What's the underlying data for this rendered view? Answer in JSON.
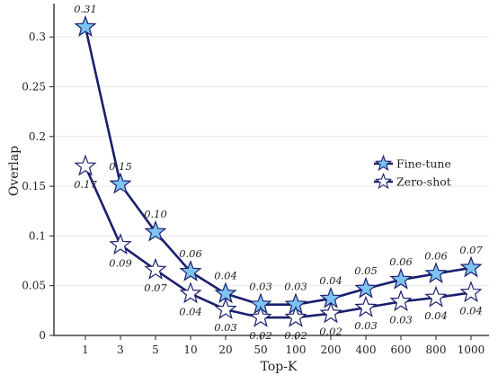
{
  "chart_data": {
    "type": "line",
    "title": "",
    "xlabel": "Top-K",
    "ylabel": "Overlap",
    "categories": [
      "1",
      "3",
      "5",
      "10",
      "20",
      "50",
      "100",
      "200",
      "400",
      "600",
      "800",
      "1000"
    ],
    "ylim": [
      0,
      0.33
    ],
    "yticks": [
      0,
      0.05,
      0.1,
      0.15,
      0.2,
      0.25,
      0.3
    ],
    "ytick_labels": [
      "0",
      "0.05",
      "0.1",
      "0.15",
      "0.2",
      "0.25",
      "0.3"
    ],
    "grid": true,
    "legend_position": "right",
    "series": [
      {
        "name": "Fine-tune",
        "values": [
          0.31,
          0.152,
          0.104,
          0.064,
          0.042,
          0.031,
          0.031,
          0.037,
          0.047,
          0.056,
          0.062,
          0.068
        ],
        "labels": [
          "0.31",
          "0.15",
          "0.10",
          "0.06",
          "0.04",
          "0.03",
          "0.03",
          "0.04",
          "0.05",
          "0.06",
          "0.06",
          "0.07"
        ],
        "label_position": "above",
        "marker": "star-filled",
        "color": "#1a1f6e",
        "fill": "#7ec3f2"
      },
      {
        "name": "Zero-shot",
        "values": [
          0.17,
          0.091,
          0.066,
          0.042,
          0.026,
          0.018,
          0.018,
          0.022,
          0.028,
          0.034,
          0.038,
          0.043
        ],
        "labels": [
          "0.17",
          "0.09",
          "0.07",
          "0.04",
          "0.03",
          "0.02",
          "0.02",
          "0.02",
          "0.03",
          "0.03",
          "0.04",
          "0.04"
        ],
        "label_position": "below",
        "marker": "star-open",
        "color": "#1a1f6e",
        "fill": "#ffffff"
      }
    ]
  }
}
